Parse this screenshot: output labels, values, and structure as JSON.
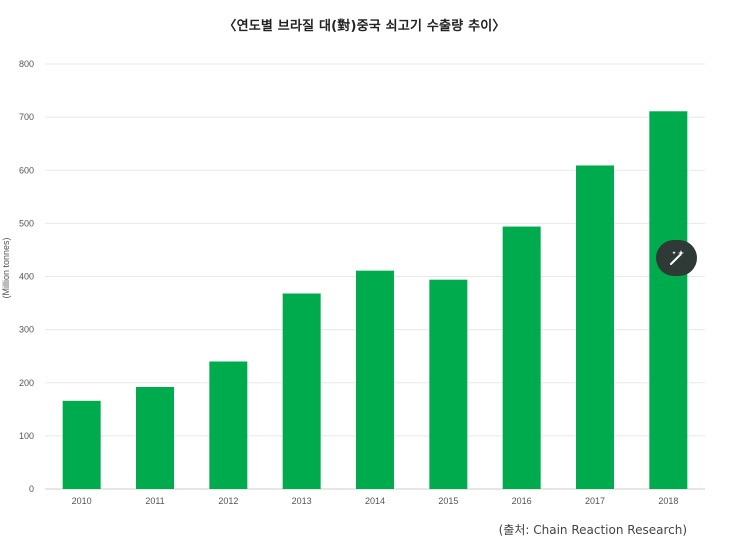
{
  "chart_data": {
    "type": "bar",
    "title": "〈연도별 브라질 대(對)중국  쇠고기 수출량 추이〉",
    "ylabel": "(Million tonnes)",
    "xlabel": "",
    "categories": [
      "2010",
      "2011",
      "2012",
      "2013",
      "2014",
      "2015",
      "2016",
      "2017",
      "2018"
    ],
    "values": [
      166,
      192,
      240,
      368,
      411,
      394,
      494,
      609,
      711
    ],
    "ylim": [
      0,
      800
    ],
    "yticks": [
      0,
      100,
      200,
      300,
      400,
      500,
      600,
      700,
      800
    ],
    "grid": true,
    "bar_color": "#00ab4e",
    "source": "(출처: Chain Reaction Research)"
  },
  "overlay": {
    "edit_button_icon": "magic-wand-icon"
  }
}
